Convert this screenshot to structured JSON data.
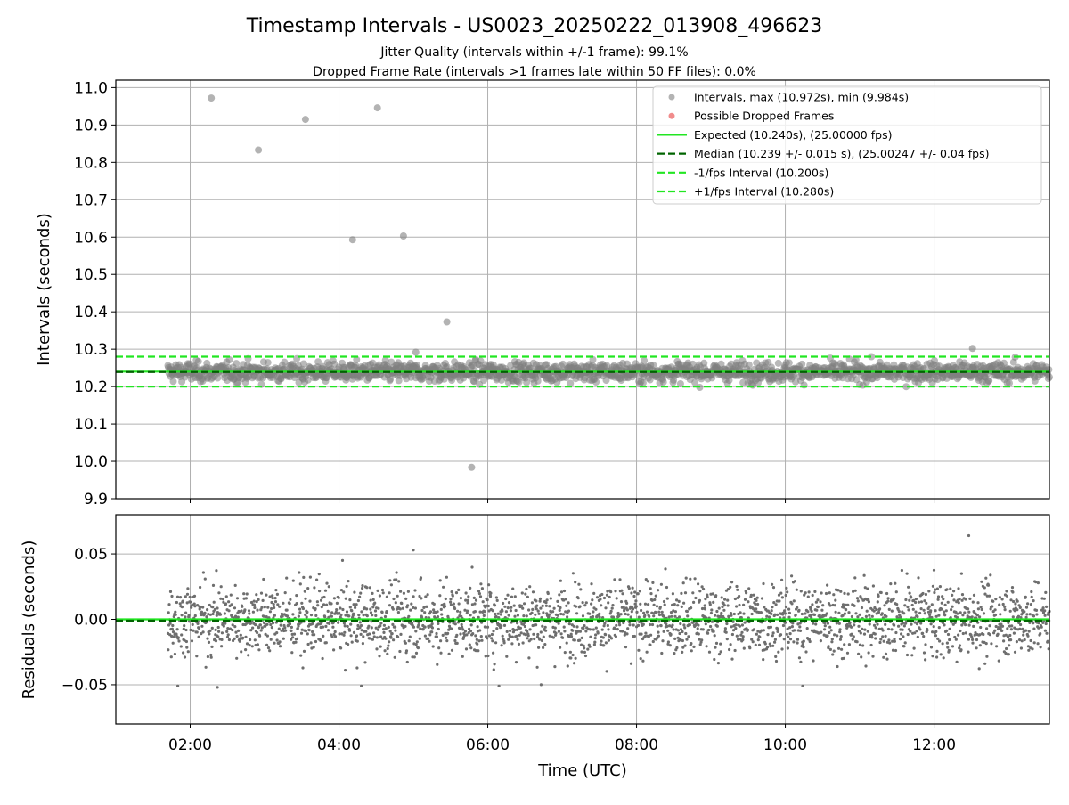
{
  "chart_data": [
    {
      "type": "scatter",
      "title": "Timestamp Intervals - US0023_20250222_013908_496623",
      "subtitle_lines": [
        "Jitter Quality (intervals within +/-1 frame): 99.1%",
        "Dropped Frame Rate (intervals >1 frames late within 50 FF files): 0.0%"
      ],
      "xlabel": "",
      "ylabel": "Intervals (seconds)",
      "ylim": [
        9.9,
        11.02
      ],
      "xlim_hours": [
        1.0,
        13.55
      ],
      "yticks": [
        "9.9",
        "10.0",
        "10.1",
        "10.2",
        "10.3",
        "10.4",
        "10.5",
        "10.6",
        "10.7",
        "10.8",
        "10.9",
        "11.0"
      ],
      "grid": true,
      "legend_position": "top-right",
      "series": [
        {
          "name": "Intervals, max (10.972s), min (9.984s)",
          "kind": "scatter",
          "color": "#808080",
          "time_range_hours": [
            1.7,
            13.55
          ],
          "typical_range": [
            10.2,
            10.28
          ],
          "center": 10.239,
          "outliers": [
            {
              "t": "02:17",
              "y": 10.972
            },
            {
              "t": "02:55",
              "y": 10.833
            },
            {
              "t": "03:33",
              "y": 10.915
            },
            {
              "t": "04:31",
              "y": 10.946
            },
            {
              "t": "04:11",
              "y": 10.593
            },
            {
              "t": "04:52",
              "y": 10.603
            },
            {
              "t": "05:27",
              "y": 10.373
            },
            {
              "t": "05:47",
              "y": 9.984
            },
            {
              "t": "12:31",
              "y": 10.302
            },
            {
              "t": "05:02",
              "y": 10.292
            }
          ]
        },
        {
          "name": "Possible Dropped Frames",
          "kind": "scatter",
          "color": "#f08080",
          "points": []
        },
        {
          "name": "Expected (10.240s), (25.00000 fps)",
          "kind": "hline",
          "y": 10.24,
          "color": "#22e622",
          "style": "solid"
        },
        {
          "name": "Median (10.239 +/- 0.015 s), (25.00247 +/- 0.04 fps)",
          "kind": "hline",
          "y": 10.239,
          "color": "#006400",
          "style": "dashed"
        },
        {
          "name": "-1/fps Interval (10.200s)",
          "kind": "hline",
          "y": 10.2,
          "color": "#22e622",
          "style": "dashed"
        },
        {
          "name": "+1/fps Interval (10.280s)",
          "kind": "hline",
          "y": 10.28,
          "color": "#22e622",
          "style": "dashed"
        }
      ]
    },
    {
      "type": "scatter",
      "title": "",
      "xlabel": "Time (UTC)",
      "ylabel": "Residuals (seconds)",
      "ylim": [
        -0.08,
        0.08
      ],
      "xlim_hours": [
        1.0,
        13.55
      ],
      "yticks": [
        "0.05",
        "0.00",
        "−0.05"
      ],
      "xticks": [
        "02:00",
        "04:00",
        "06:00",
        "08:00",
        "10:00",
        "12:00"
      ],
      "grid": true,
      "series": [
        {
          "kind": "scatter",
          "color": "#6e6e6e",
          "time_range_hours": [
            1.7,
            13.55
          ],
          "typical_range": [
            -0.03,
            0.03
          ],
          "outliers": [
            {
              "t": "05:00",
              "y": 0.053
            },
            {
              "t": "12:28",
              "y": 0.064
            },
            {
              "t": "01:50",
              "y": -0.051
            },
            {
              "t": "02:22",
              "y": -0.052
            },
            {
              "t": "04:18",
              "y": -0.051
            },
            {
              "t": "06:09",
              "y": -0.051
            },
            {
              "t": "06:43",
              "y": -0.05
            },
            {
              "t": "10:14",
              "y": -0.051
            }
          ]
        },
        {
          "kind": "hline",
          "y": 0.0,
          "color": "#22e622",
          "style": "solid"
        },
        {
          "kind": "hline",
          "y": -0.001,
          "color": "#006400",
          "style": "dashed"
        }
      ]
    }
  ]
}
